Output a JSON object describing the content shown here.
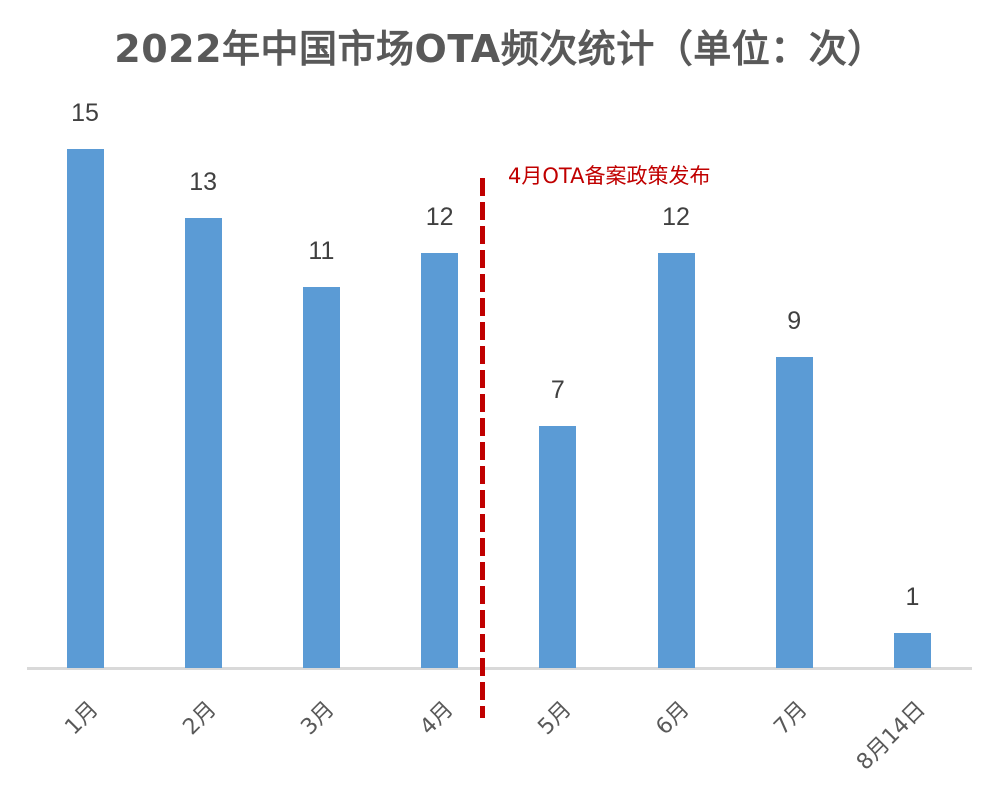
{
  "chart_data": {
    "type": "bar",
    "title": "2022年中国市场OTA频次统计（单位：次）",
    "categories": [
      "1月",
      "2月",
      "3月",
      "4月",
      "5月",
      "6月",
      "7月",
      "8月14日"
    ],
    "values": [
      15,
      13,
      11,
      12,
      7,
      12,
      9,
      1
    ],
    "xlabel": "",
    "ylabel": "",
    "ylim": [
      0,
      15
    ],
    "grid": false,
    "legend": "none",
    "bar_color": "#5b9bd5",
    "annotations": [
      {
        "type": "vertical-dashed-line",
        "position_between": [
          "4月",
          "5月"
        ],
        "color": "#c00000",
        "label": "4月OTA备案政策发布"
      }
    ]
  },
  "labels": {
    "title": "2022年中国市场OTA频次统计（单位：次）",
    "annotation": "4月OTA备案政策发布",
    "values": [
      "15",
      "13",
      "11",
      "12",
      "7",
      "12",
      "9",
      "1"
    ],
    "categories": [
      "1月",
      "2月",
      "3月",
      "4月",
      "5月",
      "6月",
      "7月",
      "8月14日"
    ]
  }
}
